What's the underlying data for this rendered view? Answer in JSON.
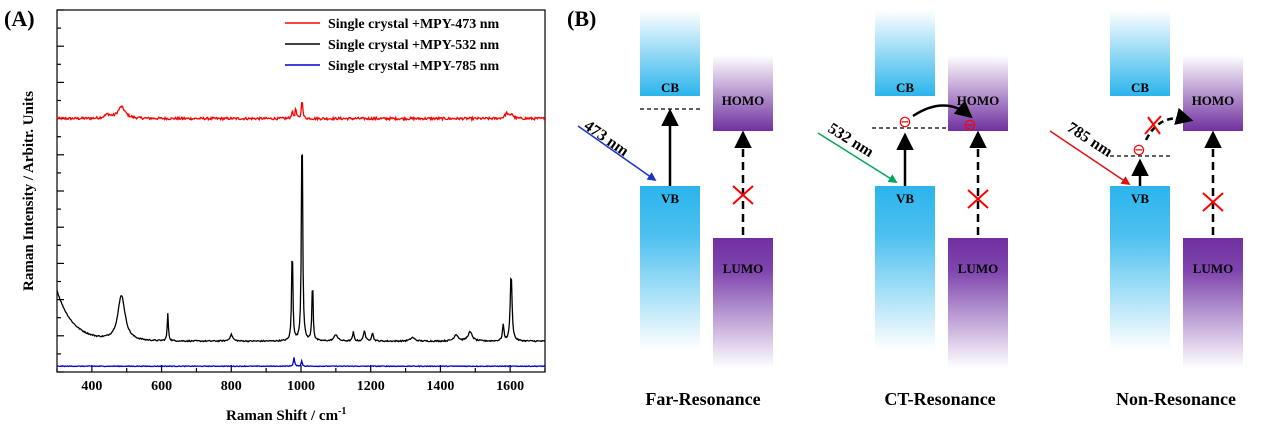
{
  "panel_a_label": "(A)",
  "panel_b_label": "(B)",
  "chart_data": {
    "type": "line",
    "xlabel": "Raman Shift / cm",
    "xlabel_superscript": "-1",
    "ylabel": "Raman Intensity / Arbitr. Units",
    "xlim": [
      300,
      1700
    ],
    "x_ticks": [
      400,
      600,
      800,
      1000,
      1200,
      1400,
      1600
    ],
    "ylim": [
      0,
      100
    ],
    "y_tick_labels": "none",
    "legend_position": "top-right",
    "series": [
      {
        "name": "Single crystal +MPY-473 nm",
        "color": "#ff0000",
        "baseline": 70,
        "noise": 0.35,
        "peaks": [
          [
            485,
            3.2,
            25
          ],
          [
            445,
            1.0,
            20
          ],
          [
            975,
            2.0,
            5
          ],
          [
            985,
            2.8,
            4
          ],
          [
            1003,
            5.8,
            4
          ],
          [
            1590,
            1.5,
            12
          ],
          [
            1605,
            1.3,
            8
          ]
        ]
      },
      {
        "name": "Single crystal +MPY-532 nm",
        "color": "#000000",
        "baseline": 8.5,
        "noise": 0.18,
        "start_rise": {
          "amplitude": 14,
          "decay": 45
        },
        "peaks": [
          [
            485,
            12.5,
            25
          ],
          [
            618,
            7.5,
            4
          ],
          [
            800,
            1.8,
            10
          ],
          [
            975,
            27,
            4
          ],
          [
            1003,
            64,
            4
          ],
          [
            1033,
            17,
            4
          ],
          [
            1100,
            1.8,
            12
          ],
          [
            1150,
            2.5,
            5
          ],
          [
            1182,
            3,
            6
          ],
          [
            1205,
            2.3,
            6
          ],
          [
            1320,
            1.0,
            15
          ],
          [
            1445,
            1.8,
            14
          ],
          [
            1485,
            2.5,
            15
          ],
          [
            1580,
            4.5,
            5
          ],
          [
            1603,
            19,
            6
          ]
        ]
      },
      {
        "name": "Single crystal +MPY-785 nm",
        "color": "#0000cc",
        "baseline": 1.6,
        "noise": 0.1,
        "peaks": [
          [
            980,
            2.4,
            4
          ],
          [
            1002,
            1.4,
            4
          ]
        ]
      }
    ]
  },
  "diagram": {
    "labels": {
      "cb": "CB",
      "vb": "VB",
      "homo": "HOMO",
      "lumo": "LUMO",
      "laser_473": "473 nm",
      "laser_532": "532 nm",
      "laser_785": "785 nm",
      "caption_far": "Far-Resonance",
      "caption_ct": "CT-Resonance",
      "caption_non": "Non-Resonance",
      "electron_symbol": "⊖"
    },
    "colors": {
      "conduction_band": "#2bb4ec",
      "molecule_band": "#7030a0",
      "cross": "#ff0000",
      "laser_473": "#1a33cc",
      "laser_532": "#00a65a",
      "laser_785": "#e01010"
    }
  }
}
